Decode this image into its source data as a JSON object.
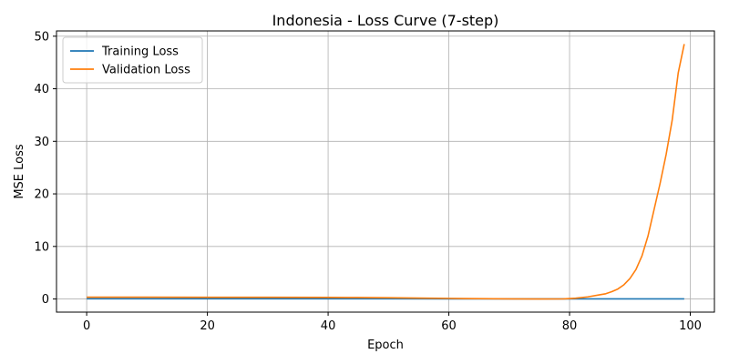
{
  "chart_data": {
    "type": "line",
    "title": "Indonesia - Loss Curve (7-step)",
    "xlabel": "Epoch",
    "ylabel": "MSE Loss",
    "xlim": [
      -5,
      104
    ],
    "ylim": [
      -2.5,
      51
    ],
    "xticks": [
      0,
      20,
      40,
      60,
      80,
      100
    ],
    "yticks": [
      0,
      10,
      20,
      30,
      40,
      50
    ],
    "grid": true,
    "legend_position": "top-left",
    "series": [
      {
        "name": "Training Loss",
        "color": "#1f77b4",
        "x": [
          0,
          10,
          20,
          30,
          40,
          50,
          60,
          70,
          80,
          90,
          99
        ],
        "y": [
          0.05,
          0.05,
          0.05,
          0.04,
          0.04,
          0.04,
          0.03,
          0.03,
          0.03,
          0.02,
          0.02
        ]
      },
      {
        "name": "Validation Loss",
        "color": "#ff7f0e",
        "x": [
          0,
          10,
          20,
          30,
          40,
          45,
          50,
          55,
          60,
          65,
          70,
          75,
          79,
          81,
          83,
          85,
          86,
          87,
          88,
          89,
          90,
          91,
          92,
          93,
          94,
          95,
          96,
          97,
          98,
          99
        ],
        "y": [
          0.35,
          0.35,
          0.33,
          0.32,
          0.3,
          0.28,
          0.24,
          0.18,
          0.12,
          0.06,
          0.02,
          0.0,
          0.02,
          0.15,
          0.4,
          0.8,
          1.0,
          1.4,
          1.9,
          2.7,
          3.9,
          5.6,
          8.2,
          12.0,
          17.0,
          22.0,
          27.5,
          34.0,
          43.0,
          48.5
        ]
      }
    ]
  }
}
